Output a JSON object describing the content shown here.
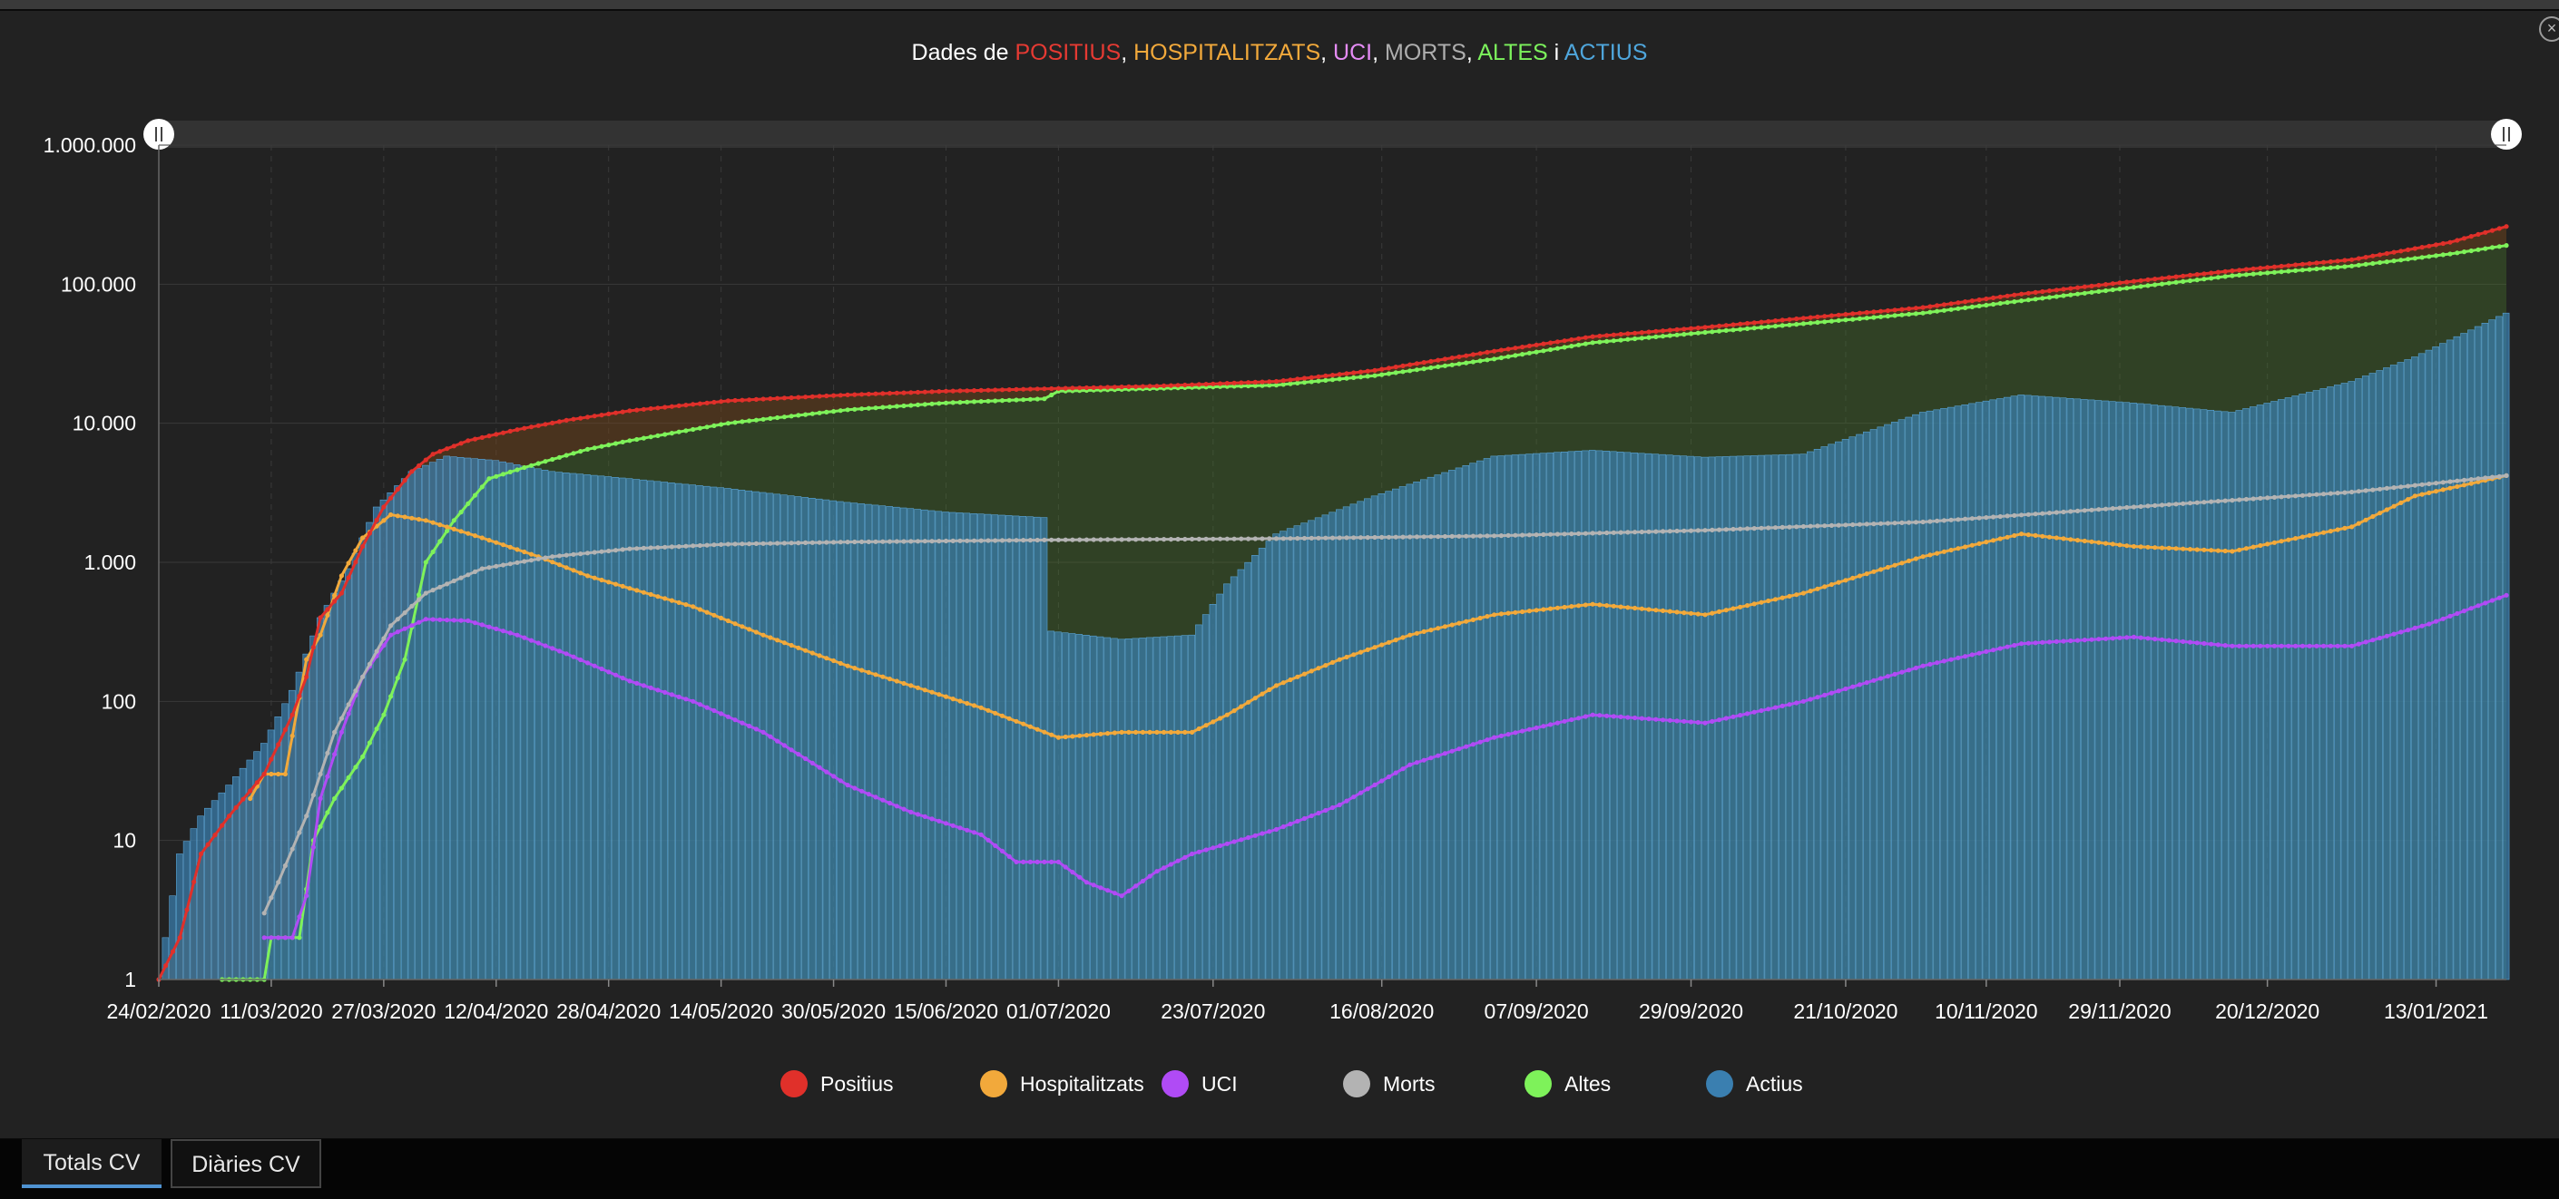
{
  "window": {
    "close_label": "×"
  },
  "title": {
    "prefix": "Dades de ",
    "parts": [
      {
        "text": "POSITIUS",
        "color": "#e53a33"
      },
      {
        "text": ", ",
        "color": "#ffffff"
      },
      {
        "text": "HOSPITALITZATS",
        "color": "#f2a93b"
      },
      {
        "text": ", ",
        "color": "#ffffff"
      },
      {
        "text": "UCI",
        "color": "#e58cf5"
      },
      {
        "text": ", ",
        "color": "#ffffff"
      },
      {
        "text": "MORTS",
        "color": "#aeaeae"
      },
      {
        "text": ", ",
        "color": "#ffffff"
      },
      {
        "text": "ALTES",
        "color": "#7cf25c"
      },
      {
        "text": " i ",
        "color": "#ffffff"
      },
      {
        "text": "ACTIUS",
        "color": "#4fa6dc"
      }
    ]
  },
  "legend": [
    {
      "label": "Positius",
      "color": "#e0302a",
      "icon": "circle"
    },
    {
      "label": "Hospitalitzats",
      "color": "#f2a93b",
      "icon": "circle"
    },
    {
      "label": "UCI",
      "color": "#b04bf5",
      "icon": "circle"
    },
    {
      "label": "Morts",
      "color": "#b3b3b3",
      "icon": "circle"
    },
    {
      "label": "Altes",
      "color": "#7ef25a",
      "icon": "circle"
    },
    {
      "label": "Actius",
      "color": "#3a7fb0",
      "icon": "circle"
    }
  ],
  "tabs": [
    {
      "label": "Totals CV",
      "active": true
    },
    {
      "label": "Diàries CV",
      "active": false
    }
  ],
  "chart_data": {
    "type": "line",
    "title": "Dades de POSITIUS, HOSPITALITZATS, UCI, MORTS, ALTES i ACTIUS",
    "y_scale": "log",
    "ylim": [
      1,
      1000000
    ],
    "y_ticks": [
      "1",
      "10",
      "100",
      "1.000",
      "10.000",
      "100.000",
      "1.000.000"
    ],
    "x_tick_labels": [
      "24/02/2020",
      "11/03/2020",
      "27/03/2020",
      "12/04/2020",
      "28/04/2020",
      "14/05/2020",
      "30/05/2020",
      "15/06/2020",
      "01/07/2020",
      "23/07/2020",
      "16/08/2020",
      "07/09/2020",
      "29/09/2020",
      "21/10/2020",
      "10/11/2020",
      "29/11/2020",
      "20/12/2020",
      "13/01/2021"
    ],
    "x_range": [
      "2020-02-24",
      "2021-01-23"
    ],
    "grid": true,
    "legend_position": "bottom",
    "series": [
      {
        "name": "Positius",
        "type": "line",
        "color": "#e0302a",
        "points": [
          [
            "2020-02-24",
            1
          ],
          [
            "2020-02-27",
            2
          ],
          [
            "2020-03-01",
            8
          ],
          [
            "2020-03-05",
            15
          ],
          [
            "2020-03-10",
            30
          ],
          [
            "2020-03-14",
            80
          ],
          [
            "2020-03-16",
            150
          ],
          [
            "2020-03-18",
            400
          ],
          [
            "2020-03-21",
            600
          ],
          [
            "2020-03-24",
            1300
          ],
          [
            "2020-03-27",
            2500
          ],
          [
            "2020-03-31",
            4500
          ],
          [
            "2020-04-03",
            6000
          ],
          [
            "2020-04-08",
            7500
          ],
          [
            "2020-04-15",
            9000
          ],
          [
            "2020-04-22",
            10500
          ],
          [
            "2020-05-01",
            12300
          ],
          [
            "2020-05-15",
            14500
          ],
          [
            "2020-06-01",
            16000
          ],
          [
            "2020-06-15",
            17000
          ],
          [
            "2020-07-01",
            17800
          ],
          [
            "2020-07-15",
            18500
          ],
          [
            "2020-08-01",
            20000
          ],
          [
            "2020-08-15",
            24000
          ],
          [
            "2020-09-01",
            33000
          ],
          [
            "2020-09-15",
            42000
          ],
          [
            "2020-10-01",
            49000
          ],
          [
            "2020-10-15",
            57000
          ],
          [
            "2020-11-01",
            68000
          ],
          [
            "2020-11-15",
            85000
          ],
          [
            "2020-12-01",
            105000
          ],
          [
            "2020-12-15",
            125000
          ],
          [
            "2021-01-01",
            150000
          ],
          [
            "2021-01-15",
            200000
          ],
          [
            "2021-01-23",
            260000
          ]
        ]
      },
      {
        "name": "Altes",
        "type": "line",
        "color": "#7ef25a",
        "points": [
          [
            "2020-03-04",
            1
          ],
          [
            "2020-03-10",
            1
          ],
          [
            "2020-03-11",
            2
          ],
          [
            "2020-03-15",
            2
          ],
          [
            "2020-03-17",
            10
          ],
          [
            "2020-03-20",
            20
          ],
          [
            "2020-03-24",
            40
          ],
          [
            "2020-03-27",
            80
          ],
          [
            "2020-03-30",
            200
          ],
          [
            "2020-04-02",
            1000
          ],
          [
            "2020-04-06",
            2000
          ],
          [
            "2020-04-11",
            4000
          ],
          [
            "2020-04-16",
            4800
          ],
          [
            "2020-04-20",
            5500
          ],
          [
            "2020-04-25",
            6500
          ],
          [
            "2020-05-01",
            7500
          ],
          [
            "2020-05-15",
            10000
          ],
          [
            "2020-06-01",
            12500
          ],
          [
            "2020-06-15",
            14000
          ],
          [
            "2020-06-29",
            15000
          ],
          [
            "2020-07-01",
            17000
          ],
          [
            "2020-07-15",
            17800
          ],
          [
            "2020-08-01",
            18800
          ],
          [
            "2020-08-15",
            22000
          ],
          [
            "2020-09-01",
            29000
          ],
          [
            "2020-09-15",
            38000
          ],
          [
            "2020-10-01",
            45000
          ],
          [
            "2020-10-15",
            52000
          ],
          [
            "2020-11-01",
            62000
          ],
          [
            "2020-11-15",
            76000
          ],
          [
            "2020-12-01",
            95000
          ],
          [
            "2020-12-15",
            115000
          ],
          [
            "2021-01-01",
            135000
          ],
          [
            "2021-01-15",
            165000
          ],
          [
            "2021-01-23",
            190000
          ]
        ]
      },
      {
        "name": "Hospitalitzats",
        "type": "line",
        "color": "#f2a93b",
        "points": [
          [
            "2020-03-08",
            20
          ],
          [
            "2020-03-10",
            30
          ],
          [
            "2020-03-13",
            30
          ],
          [
            "2020-03-16",
            200
          ],
          [
            "2020-03-18",
            300
          ],
          [
            "2020-03-21",
            800
          ],
          [
            "2020-03-24",
            1500
          ],
          [
            "2020-03-28",
            2200
          ],
          [
            "2020-04-02",
            2000
          ],
          [
            "2020-04-10",
            1500
          ],
          [
            "2020-04-18",
            1100
          ],
          [
            "2020-04-25",
            800
          ],
          [
            "2020-05-01",
            650
          ],
          [
            "2020-05-10",
            480
          ],
          [
            "2020-05-20",
            300
          ],
          [
            "2020-06-01",
            180
          ],
          [
            "2020-06-10",
            130
          ],
          [
            "2020-06-20",
            90
          ],
          [
            "2020-07-01",
            55
          ],
          [
            "2020-07-10",
            60
          ],
          [
            "2020-07-20",
            60
          ],
          [
            "2020-07-25",
            80
          ],
          [
            "2020-08-01",
            130
          ],
          [
            "2020-08-10",
            200
          ],
          [
            "2020-08-20",
            300
          ],
          [
            "2020-09-01",
            420
          ],
          [
            "2020-09-15",
            500
          ],
          [
            "2020-10-01",
            420
          ],
          [
            "2020-10-15",
            600
          ],
          [
            "2020-11-01",
            1100
          ],
          [
            "2020-11-15",
            1600
          ],
          [
            "2020-12-01",
            1300
          ],
          [
            "2020-12-15",
            1200
          ],
          [
            "2021-01-01",
            1800
          ],
          [
            "2021-01-10",
            3000
          ],
          [
            "2021-01-23",
            4200
          ]
        ]
      },
      {
        "name": "UCI",
        "type": "line",
        "color": "#b04bf5",
        "points": [
          [
            "2020-03-10",
            2
          ],
          [
            "2020-03-14",
            2
          ],
          [
            "2020-03-16",
            4
          ],
          [
            "2020-03-18",
            20
          ],
          [
            "2020-03-21",
            60
          ],
          [
            "2020-03-24",
            150
          ],
          [
            "2020-03-28",
            300
          ],
          [
            "2020-04-02",
            390
          ],
          [
            "2020-04-08",
            380
          ],
          [
            "2020-04-15",
            300
          ],
          [
            "2020-04-22",
            220
          ],
          [
            "2020-05-01",
            140
          ],
          [
            "2020-05-10",
            100
          ],
          [
            "2020-05-20",
            60
          ],
          [
            "2020-06-01",
            25
          ],
          [
            "2020-06-10",
            16
          ],
          [
            "2020-06-20",
            11
          ],
          [
            "2020-06-25",
            7
          ],
          [
            "2020-07-01",
            7
          ],
          [
            "2020-07-05",
            5
          ],
          [
            "2020-07-10",
            4
          ],
          [
            "2020-07-15",
            6
          ],
          [
            "2020-07-20",
            8
          ],
          [
            "2020-08-01",
            12
          ],
          [
            "2020-08-10",
            18
          ],
          [
            "2020-08-20",
            35
          ],
          [
            "2020-09-01",
            55
          ],
          [
            "2020-09-15",
            80
          ],
          [
            "2020-10-01",
            70
          ],
          [
            "2020-10-15",
            100
          ],
          [
            "2020-11-01",
            180
          ],
          [
            "2020-11-15",
            260
          ],
          [
            "2020-12-01",
            290
          ],
          [
            "2020-12-15",
            250
          ],
          [
            "2021-01-01",
            250
          ],
          [
            "2021-01-12",
            360
          ],
          [
            "2021-01-23",
            580
          ]
        ]
      },
      {
        "name": "Morts",
        "type": "line",
        "color": "#b3b3b3",
        "points": [
          [
            "2020-03-10",
            3
          ],
          [
            "2020-03-12",
            5
          ],
          [
            "2020-03-16",
            15
          ],
          [
            "2020-03-20",
            60
          ],
          [
            "2020-03-24",
            150
          ],
          [
            "2020-03-28",
            350
          ],
          [
            "2020-04-02",
            600
          ],
          [
            "2020-04-10",
            900
          ],
          [
            "2020-04-20",
            1100
          ],
          [
            "2020-05-01",
            1250
          ],
          [
            "2020-05-15",
            1350
          ],
          [
            "2020-06-01",
            1400
          ],
          [
            "2020-07-01",
            1450
          ],
          [
            "2020-08-01",
            1480
          ],
          [
            "2020-09-01",
            1550
          ],
          [
            "2020-10-01",
            1700
          ],
          [
            "2020-11-01",
            1950
          ],
          [
            "2020-12-01",
            2500
          ],
          [
            "2021-01-01",
            3200
          ],
          [
            "2021-01-23",
            4200
          ]
        ]
      },
      {
        "name": "Actius",
        "type": "bar",
        "color": "#3a7fb0",
        "points": [
          [
            "2020-02-24",
            1
          ],
          [
            "2020-02-27",
            8
          ],
          [
            "2020-03-01",
            15
          ],
          [
            "2020-03-05",
            25
          ],
          [
            "2020-03-10",
            50
          ],
          [
            "2020-03-14",
            120
          ],
          [
            "2020-03-18",
            400
          ],
          [
            "2020-03-22",
            900
          ],
          [
            "2020-03-26",
            2500
          ],
          [
            "2020-03-31",
            4500
          ],
          [
            "2020-04-05",
            5800
          ],
          [
            "2020-04-12",
            5400
          ],
          [
            "2020-04-20",
            4500
          ],
          [
            "2020-05-01",
            4000
          ],
          [
            "2020-05-15",
            3400
          ],
          [
            "2020-06-01",
            2700
          ],
          [
            "2020-06-15",
            2300
          ],
          [
            "2020-06-29",
            2100
          ],
          [
            "2020-06-30",
            320
          ],
          [
            "2020-07-10",
            280
          ],
          [
            "2020-07-20",
            300
          ],
          [
            "2020-07-25",
            700
          ],
          [
            "2020-08-01",
            1600
          ],
          [
            "2020-08-15",
            3000
          ],
          [
            "2020-09-01",
            5800
          ],
          [
            "2020-09-15",
            6400
          ],
          [
            "2020-10-01",
            5700
          ],
          [
            "2020-10-15",
            6000
          ],
          [
            "2020-11-01",
            12000
          ],
          [
            "2020-11-15",
            16000
          ],
          [
            "2020-12-01",
            14000
          ],
          [
            "2020-12-15",
            12000
          ],
          [
            "2021-01-01",
            20000
          ],
          [
            "2021-01-10",
            30000
          ],
          [
            "2021-01-23",
            62000
          ]
        ]
      }
    ]
  }
}
